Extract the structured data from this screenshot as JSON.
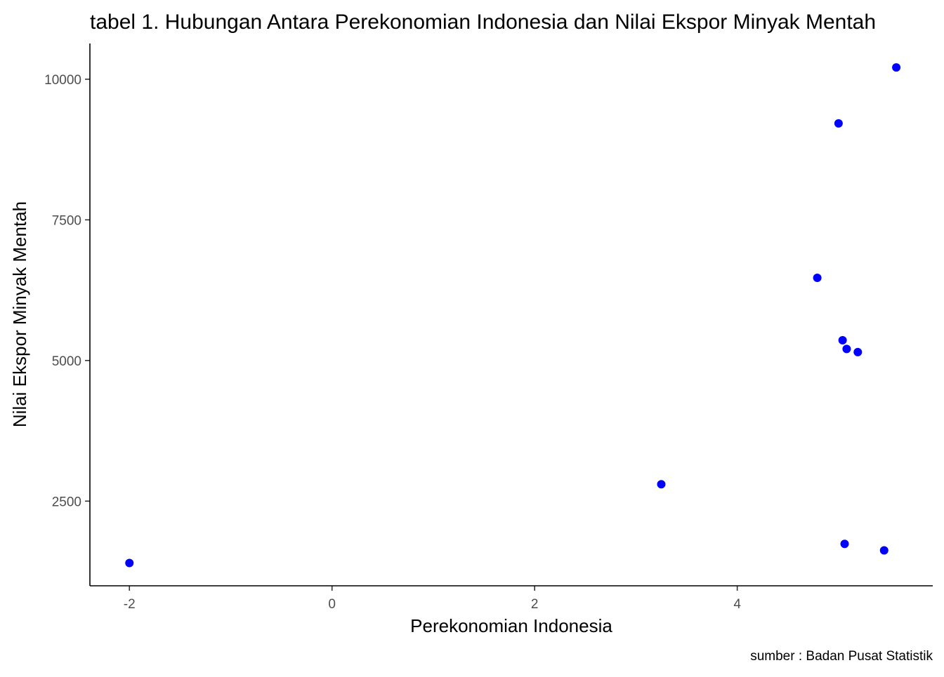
{
  "chart_data": {
    "type": "scatter",
    "title": "tabel 1. Hubungan Antara Perekonomian Indonesia dan Nilai Ekspor Minyak Mentah",
    "xlabel": "Perekonomian Indonesia",
    "ylabel": "Nilai Ekspor Minyak Mentah",
    "caption": "sumber : Badan Pusat Statistik",
    "xlim": [
      -2.39,
      5.93
    ],
    "ylim": [
      995,
      10635
    ],
    "xticks": [
      -2,
      0,
      2,
      4
    ],
    "xtick_labels": [
      "-2",
      "0",
      "2",
      "4"
    ],
    "yticks": [
      2500,
      5000,
      7500,
      10000
    ],
    "ytick_labels": [
      "2500",
      "5000",
      "7500",
      "10000"
    ],
    "grid": false,
    "point_color": "#0000ff",
    "points": [
      {
        "x": -2.0,
        "y": 1400
      },
      {
        "x": 3.25,
        "y": 2800
      },
      {
        "x": 4.79,
        "y": 6470
      },
      {
        "x": 5.0,
        "y": 9215
      },
      {
        "x": 5.04,
        "y": 5360
      },
      {
        "x": 5.06,
        "y": 1740
      },
      {
        "x": 5.08,
        "y": 5205
      },
      {
        "x": 5.19,
        "y": 5150
      },
      {
        "x": 5.45,
        "y": 1625
      },
      {
        "x": 5.57,
        "y": 10210
      }
    ]
  }
}
